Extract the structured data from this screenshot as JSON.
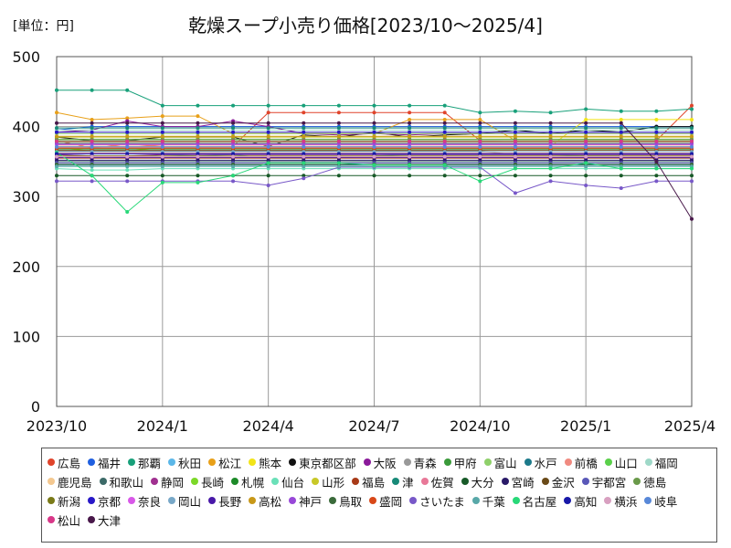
{
  "chart_data": {
    "type": "line",
    "title": "乾燥スープ小売り価格[2023/10～2025/4]",
    "unit_label": "[単位：円]",
    "xlabel": "",
    "ylabel": "",
    "ylim": [
      0,
      500
    ],
    "yticks": [
      "0",
      "100",
      "200",
      "300",
      "400",
      "500"
    ],
    "xticks": [
      "2023/10",
      "2024/1",
      "2024/4",
      "2024/7",
      "2024/10",
      "2025/1",
      "2025/4"
    ],
    "x": [
      "2023/10",
      "2023/11",
      "2023/12",
      "2024/1",
      "2024/2",
      "2024/3",
      "2024/4",
      "2024/5",
      "2024/6",
      "2024/7",
      "2024/8",
      "2024/9",
      "2024/10",
      "2024/11",
      "2024/12",
      "2025/1",
      "2025/2",
      "2025/3",
      "2025/4"
    ],
    "grid": true,
    "series": [
      {
        "name": "広島",
        "color": "#e0442b",
        "values": [
          380,
          370,
          375,
          372,
          370,
          372,
          420,
          420,
          420,
          420,
          420,
          420,
          380,
          378,
          378,
          380,
          380,
          380,
          430
        ]
      },
      {
        "name": "福井",
        "color": "#1f5fe0",
        "values": [
          395,
          400,
          400,
          400,
          400,
          400,
          400,
          400,
          400,
          400,
          400,
          400,
          400,
          400,
          400,
          400,
          400,
          400,
          400
        ]
      },
      {
        "name": "那覇",
        "color": "#18a07a",
        "values": [
          452,
          452,
          452,
          430,
          430,
          430,
          430,
          430,
          430,
          430,
          430,
          430,
          420,
          422,
          420,
          425,
          422,
          422,
          425
        ]
      },
      {
        "name": "秋田",
        "color": "#5bb7e8",
        "values": [
          360,
          358,
          355,
          360,
          358,
          360,
          355,
          355,
          355,
          358,
          360,
          360,
          360,
          360,
          360,
          358,
          358,
          355,
          355
        ]
      },
      {
        "name": "松江",
        "color": "#e8a019",
        "values": [
          420,
          410,
          412,
          415,
          415,
          390,
          390,
          390,
          390,
          390,
          410,
          410,
          410,
          380,
          380,
          380,
          380,
          380,
          380
        ]
      },
      {
        "name": "熊本",
        "color": "#f2e418",
        "values": [
          370,
          365,
          365,
          370,
          370,
          370,
          372,
          372,
          372,
          372,
          372,
          372,
          372,
          372,
          372,
          410,
          410,
          410,
          410
        ]
      },
      {
        "name": "東京都区部",
        "color": "#111111",
        "values": [
          385,
          380,
          380,
          385,
          385,
          385,
          372,
          388,
          385,
          392,
          385,
          388,
          390,
          395,
          390,
          395,
          392,
          400,
          400
        ]
      },
      {
        "name": "大阪",
        "color": "#8a1a9a",
        "values": [
          392,
          395,
          408,
          400,
          400,
          408,
          400,
          390,
          388,
          390,
          388,
          390,
          390,
          390,
          390,
          390,
          390,
          390,
          390
        ]
      },
      {
        "name": "青森",
        "color": "#999999",
        "values": [
          365,
          365,
          365,
          365,
          365,
          365,
          365,
          365,
          365,
          365,
          365,
          365,
          365,
          360,
          360,
          360,
          360,
          360,
          360
        ]
      },
      {
        "name": "甲府",
        "color": "#3a9a3a",
        "values": [
          375,
          375,
          375,
          375,
          375,
          375,
          375,
          375,
          375,
          375,
          375,
          375,
          375,
          375,
          375,
          375,
          375,
          375,
          375
        ]
      },
      {
        "name": "富山",
        "color": "#8fd06a",
        "values": [
          390,
          390,
          390,
          390,
          390,
          390,
          390,
          390,
          390,
          390,
          390,
          390,
          390,
          390,
          390,
          390,
          390,
          390,
          390
        ]
      },
      {
        "name": "水戸",
        "color": "#1c7a8a",
        "values": [
          345,
          345,
          345,
          345,
          345,
          345,
          345,
          345,
          345,
          345,
          345,
          345,
          345,
          345,
          345,
          345,
          345,
          345,
          345
        ]
      },
      {
        "name": "前橋",
        "color": "#f08a80",
        "values": [
          370,
          370,
          370,
          370,
          370,
          370,
          370,
          370,
          370,
          370,
          370,
          370,
          370,
          370,
          370,
          370,
          370,
          370,
          370
        ]
      },
      {
        "name": "山口",
        "color": "#5ad04a",
        "values": [
          380,
          380,
          380,
          380,
          380,
          380,
          380,
          380,
          380,
          380,
          380,
          380,
          380,
          380,
          380,
          380,
          380,
          380,
          380
        ]
      },
      {
        "name": "福岡",
        "color": "#9fd8c8",
        "values": [
          395,
          395,
          395,
          395,
          395,
          395,
          395,
          395,
          395,
          395,
          395,
          395,
          395,
          395,
          395,
          395,
          395,
          395,
          395
        ]
      },
      {
        "name": "鹿児島",
        "color": "#f4c890",
        "values": [
          372,
          372,
          372,
          372,
          372,
          372,
          372,
          372,
          372,
          372,
          372,
          372,
          372,
          372,
          372,
          372,
          372,
          372,
          372
        ]
      },
      {
        "name": "和歌山",
        "color": "#3c6a68",
        "values": [
          350,
          350,
          350,
          350,
          350,
          350,
          350,
          350,
          350,
          350,
          350,
          350,
          350,
          350,
          350,
          350,
          350,
          350,
          350
        ]
      },
      {
        "name": "静岡",
        "color": "#a03090",
        "values": [
          360,
          358,
          358,
          360,
          360,
          360,
          360,
          360,
          360,
          360,
          360,
          360,
          360,
          360,
          360,
          360,
          360,
          360,
          360
        ]
      },
      {
        "name": "長崎",
        "color": "#7cd828",
        "values": [
          378,
          378,
          378,
          378,
          378,
          378,
          378,
          378,
          378,
          378,
          378,
          378,
          378,
          378,
          378,
          378,
          378,
          378,
          378
        ]
      },
      {
        "name": "札幌",
        "color": "#1c8a28",
        "values": [
          368,
          368,
          368,
          368,
          368,
          368,
          368,
          368,
          368,
          368,
          368,
          368,
          368,
          368,
          368,
          368,
          368,
          368,
          368
        ]
      },
      {
        "name": "仙台",
        "color": "#6ae0b8",
        "values": [
          340,
          338,
          338,
          340,
          340,
          340,
          340,
          340,
          340,
          340,
          340,
          340,
          340,
          340,
          340,
          340,
          340,
          340,
          340
        ]
      },
      {
        "name": "山形",
        "color": "#c8c828",
        "values": [
          385,
          385,
          385,
          385,
          385,
          385,
          385,
          385,
          385,
          385,
          385,
          385,
          385,
          385,
          385,
          385,
          385,
          385,
          385
        ]
      },
      {
        "name": "福島",
        "color": "#a83a18",
        "values": [
          355,
          355,
          355,
          355,
          355,
          355,
          355,
          355,
          355,
          355,
          355,
          355,
          355,
          355,
          355,
          355,
          355,
          355,
          355
        ]
      },
      {
        "name": "津",
        "color": "#188a78",
        "values": [
          398,
          398,
          398,
          398,
          398,
          398,
          398,
          398,
          398,
          398,
          398,
          398,
          398,
          398,
          398,
          398,
          398,
          398,
          398
        ]
      },
      {
        "name": "佐賀",
        "color": "#e87898",
        "values": [
          362,
          362,
          362,
          362,
          362,
          362,
          362,
          362,
          362,
          362,
          362,
          362,
          362,
          362,
          362,
          362,
          362,
          362,
          362
        ]
      },
      {
        "name": "大分",
        "color": "#185a28",
        "values": [
          330,
          330,
          330,
          330,
          330,
          330,
          330,
          330,
          330,
          330,
          330,
          330,
          330,
          330,
          330,
          330,
          330,
          330,
          330
        ]
      },
      {
        "name": "宮崎",
        "color": "#2a1a68",
        "values": [
          352,
          352,
          352,
          352,
          352,
          352,
          352,
          352,
          352,
          352,
          352,
          352,
          352,
          352,
          352,
          352,
          352,
          352,
          352
        ]
      },
      {
        "name": "金沢",
        "color": "#6a4a18",
        "values": [
          366,
          366,
          366,
          366,
          366,
          366,
          366,
          366,
          366,
          366,
          366,
          366,
          366,
          366,
          366,
          366,
          366,
          366,
          366
        ]
      },
      {
        "name": "宇都宮",
        "color": "#5a58b8",
        "values": [
          348,
          348,
          348,
          348,
          348,
          348,
          348,
          348,
          348,
          348,
          348,
          348,
          348,
          348,
          348,
          348,
          348,
          348,
          348
        ]
      },
      {
        "name": "徳島",
        "color": "#6a9a4a",
        "values": [
          382,
          382,
          382,
          382,
          382,
          382,
          382,
          382,
          382,
          382,
          382,
          382,
          382,
          382,
          382,
          382,
          382,
          382,
          382
        ]
      },
      {
        "name": "新潟",
        "color": "#7a7a18",
        "values": [
          358,
          358,
          358,
          358,
          358,
          358,
          358,
          358,
          358,
          358,
          358,
          358,
          358,
          358,
          358,
          358,
          358,
          358,
          358
        ]
      },
      {
        "name": "京都",
        "color": "#2818c8",
        "values": [
          392,
          392,
          392,
          392,
          392,
          392,
          392,
          392,
          392,
          392,
          392,
          392,
          392,
          392,
          392,
          392,
          392,
          392,
          392
        ]
      },
      {
        "name": "奈良",
        "color": "#d858e8",
        "values": [
          374,
          374,
          374,
          374,
          374,
          374,
          374,
          374,
          374,
          374,
          374,
          374,
          374,
          374,
          374,
          374,
          374,
          374,
          374
        ]
      },
      {
        "name": "岡山",
        "color": "#78a8c8",
        "values": [
          364,
          364,
          364,
          364,
          364,
          364,
          364,
          364,
          364,
          364,
          364,
          364,
          364,
          364,
          364,
          364,
          364,
          364,
          364
        ]
      },
      {
        "name": "長野",
        "color": "#4818a8",
        "values": [
          356,
          356,
          356,
          356,
          356,
          356,
          356,
          356,
          356,
          356,
          356,
          356,
          356,
          356,
          356,
          356,
          356,
          356,
          356
        ]
      },
      {
        "name": "高松",
        "color": "#c89818",
        "values": [
          386,
          386,
          386,
          386,
          386,
          386,
          386,
          386,
          386,
          386,
          386,
          386,
          386,
          386,
          386,
          386,
          386,
          386,
          386
        ]
      },
      {
        "name": "神戸",
        "color": "#9848d8",
        "values": [
          376,
          376,
          376,
          376,
          376,
          376,
          376,
          376,
          376,
          376,
          376,
          376,
          376,
          376,
          376,
          376,
          376,
          376,
          376
        ]
      },
      {
        "name": "鳥取",
        "color": "#3a6a3a",
        "values": [
          346,
          346,
          346,
          346,
          346,
          346,
          346,
          346,
          346,
          346,
          346,
          346,
          346,
          346,
          346,
          346,
          346,
          346,
          346
        ]
      },
      {
        "name": "盛岡",
        "color": "#d84818",
        "values": [
          369,
          369,
          369,
          369,
          369,
          369,
          369,
          369,
          369,
          369,
          369,
          369,
          369,
          369,
          369,
          369,
          369,
          369,
          369
        ]
      },
      {
        "name": "さいたま",
        "color": "#7858c8",
        "values": [
          322,
          322,
          322,
          322,
          322,
          322,
          316,
          326,
          342,
          342,
          342,
          342,
          342,
          305,
          322,
          316,
          312,
          322,
          322
        ]
      },
      {
        "name": "千葉",
        "color": "#58a8a8",
        "values": [
          343,
          343,
          343,
          343,
          343,
          343,
          343,
          343,
          343,
          343,
          343,
          343,
          343,
          343,
          343,
          343,
          343,
          343,
          343
        ]
      },
      {
        "name": "名古屋",
        "color": "#28d878",
        "values": [
          363,
          330,
          278,
          320,
          320,
          330,
          348,
          348,
          348,
          345,
          345,
          345,
          322,
          340,
          340,
          348,
          340,
          340,
          340
        ]
      },
      {
        "name": "高知",
        "color": "#1818a8",
        "values": [
          361,
          361,
          361,
          361,
          361,
          361,
          361,
          361,
          361,
          361,
          361,
          361,
          361,
          361,
          361,
          361,
          361,
          361,
          361
        ]
      },
      {
        "name": "横浜",
        "color": "#d8a0c0",
        "values": [
          357,
          357,
          357,
          357,
          357,
          357,
          357,
          357,
          357,
          357,
          357,
          357,
          357,
          357,
          357,
          357,
          357,
          357,
          357
        ]
      },
      {
        "name": "岐阜",
        "color": "#5888d8",
        "values": [
          371,
          371,
          371,
          371,
          371,
          371,
          371,
          371,
          371,
          371,
          371,
          371,
          371,
          371,
          371,
          371,
          371,
          371,
          371
        ]
      },
      {
        "name": "松山",
        "color": "#d83888",
        "values": [
          379,
          379,
          379,
          379,
          379,
          379,
          379,
          379,
          379,
          379,
          379,
          379,
          379,
          379,
          379,
          379,
          379,
          379,
          379
        ]
      },
      {
        "name": "大津",
        "color": "#48184a",
        "values": [
          405,
          405,
          405,
          405,
          405,
          405,
          405,
          405,
          405,
          405,
          405,
          405,
          405,
          405,
          405,
          405,
          405,
          350,
          268
        ]
      }
    ]
  }
}
